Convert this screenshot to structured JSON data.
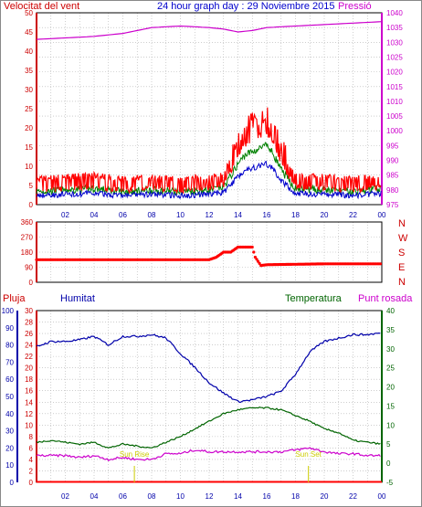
{
  "title": "24 hour graph day : 29 Noviembre 2015",
  "colors": {
    "red": "#ff0000",
    "blue": "#0000aa",
    "green": "#006400",
    "magenta": "#cc00cc",
    "yellow": "#cccc00",
    "grid": "#b0b0b0"
  },
  "x_labels": [
    "02",
    "04",
    "06",
    "08",
    "10",
    "12",
    "14",
    "16",
    "18",
    "20",
    "22",
    "00"
  ],
  "panel1": {
    "left_label": "Velocitat del vent",
    "right_label": "Pressió",
    "left_ticks": [
      "0",
      "5",
      "10",
      "15",
      "20",
      "25",
      "30",
      "35",
      "40",
      "45",
      "50"
    ],
    "right_ticks": [
      "975",
      "980",
      "985",
      "990",
      "995",
      "1000",
      "1005",
      "1010",
      "1015",
      "1020",
      "1025",
      "1030",
      "1035",
      "1040"
    ]
  },
  "panel2": {
    "left_ticks": [
      "0",
      "90",
      "180",
      "270",
      "360"
    ],
    "compass": [
      "N",
      "W",
      "S",
      "E",
      "N"
    ]
  },
  "panel3": {
    "labels": [
      "Pluja",
      "Humitat",
      "Temperatura",
      "Punt rosada"
    ],
    "rain_ticks": [
      "0",
      "2",
      "4",
      "6",
      "8",
      "10",
      "12",
      "14",
      "16",
      "18",
      "20",
      "22",
      "24",
      "26",
      "28",
      "30"
    ],
    "hum_ticks": [
      "0",
      "10",
      "20",
      "30",
      "40",
      "50",
      "60",
      "70",
      "80",
      "90",
      "100"
    ],
    "temp_ticks": [
      "-5",
      "0",
      "5",
      "10",
      "15",
      "20",
      "25",
      "30",
      "35",
      "40"
    ],
    "sun_rise": "Sun Rise",
    "sun_set": "Sun Set"
  },
  "chart_data": [
    {
      "type": "line",
      "title": "24 hour graph day : 29 Noviembre 2015",
      "x_unit": "hour",
      "xlim": [
        0,
        24
      ],
      "series": [
        {
          "name": "Velocitat del vent",
          "axis": "left",
          "ylim": [
            0,
            50
          ],
          "x": [
            0,
            2,
            4,
            6,
            8,
            10,
            12,
            13,
            13.5,
            14,
            14.5,
            15,
            15.5,
            16,
            16.5,
            17,
            18,
            20,
            22,
            24
          ],
          "values": [
            3,
            3.5,
            4,
            3,
            3.5,
            3,
            3.5,
            4.5,
            8,
            12,
            15,
            16,
            17,
            18,
            15,
            10,
            4,
            3.5,
            3,
            4
          ]
        },
        {
          "name": "Pressió",
          "axis": "right",
          "ylim": [
            975,
            1040
          ],
          "x": [
            0,
            2,
            4,
            6,
            8,
            10,
            12,
            13,
            14,
            15,
            16,
            18,
            20,
            22,
            24
          ],
          "values": [
            1031,
            1031.5,
            1032,
            1033,
            1035,
            1035.5,
            1035,
            1034.5,
            1033.5,
            1034,
            1035,
            1035.5,
            1036,
            1036.5,
            1037
          ]
        }
      ]
    },
    {
      "type": "scatter",
      "xlim": [
        0,
        24
      ],
      "ylim": [
        0,
        360
      ],
      "yticks": [
        0,
        90,
        180,
        270,
        360
      ],
      "series": [
        {
          "x": [
            0,
            12,
            12.5,
            13,
            13.5,
            14,
            14.5,
            15,
            15.2,
            15.6,
            16,
            20,
            24
          ],
          "values": [
            135,
            135,
            150,
            180,
            180,
            210,
            210,
            210,
            150,
            100,
            105,
            110,
            110
          ]
        }
      ]
    },
    {
      "type": "line",
      "xlim": [
        0,
        24
      ],
      "series": [
        {
          "name": "Pluja",
          "axis": "rain",
          "ylim": [
            0,
            30
          ],
          "x": [
            0,
            24
          ],
          "values": [
            0,
            0
          ]
        },
        {
          "name": "Humitat",
          "axis": "humidity",
          "ylim": [
            0,
            100
          ],
          "x": [
            0,
            1,
            2,
            3,
            4,
            5,
            6,
            7,
            8,
            9,
            10,
            11,
            12,
            13,
            14,
            15,
            16,
            17,
            18,
            19,
            20,
            21,
            22,
            23,
            24
          ],
          "values": [
            79,
            82,
            82,
            83,
            85,
            80,
            85,
            85,
            86,
            84,
            75,
            67,
            58,
            52,
            47,
            48,
            50,
            53,
            63,
            76,
            82,
            84,
            86,
            86,
            87
          ]
        },
        {
          "name": "Temperatura",
          "axis": "temperature",
          "ylim": [
            -5,
            40
          ],
          "x": [
            0,
            1,
            2,
            3,
            4,
            5,
            6,
            7,
            8,
            9,
            10,
            11,
            12,
            13,
            14,
            15,
            16,
            17,
            18,
            19,
            20,
            21,
            22,
            23,
            24
          ],
          "values": [
            5.5,
            6,
            5.5,
            5,
            5.5,
            4,
            5,
            4.5,
            4,
            5.5,
            7,
            9,
            11,
            13,
            14,
            14.5,
            14.5,
            14,
            12.5,
            11,
            9,
            8,
            6,
            5.5,
            5
          ]
        },
        {
          "name": "Punt rosada",
          "axis": "temperature",
          "ylim": [
            -5,
            40
          ],
          "x": [
            0,
            1,
            2,
            3,
            4,
            5,
            6,
            7,
            8,
            9,
            10,
            11,
            12,
            13,
            14,
            15,
            16,
            17,
            18,
            19,
            20,
            21,
            22,
            23,
            24
          ],
          "values": [
            2,
            2,
            2,
            1.5,
            2,
            1,
            1.5,
            1,
            1,
            2.5,
            2.5,
            3.5,
            3,
            3,
            3,
            3,
            3,
            3,
            3.5,
            4,
            3,
            2.5,
            2.5,
            2,
            2
          ]
        }
      ],
      "annotations": [
        {
          "text": "Sun Rise",
          "x": 6.8
        },
        {
          "text": "Sun Set",
          "x": 18.9
        }
      ]
    }
  ]
}
